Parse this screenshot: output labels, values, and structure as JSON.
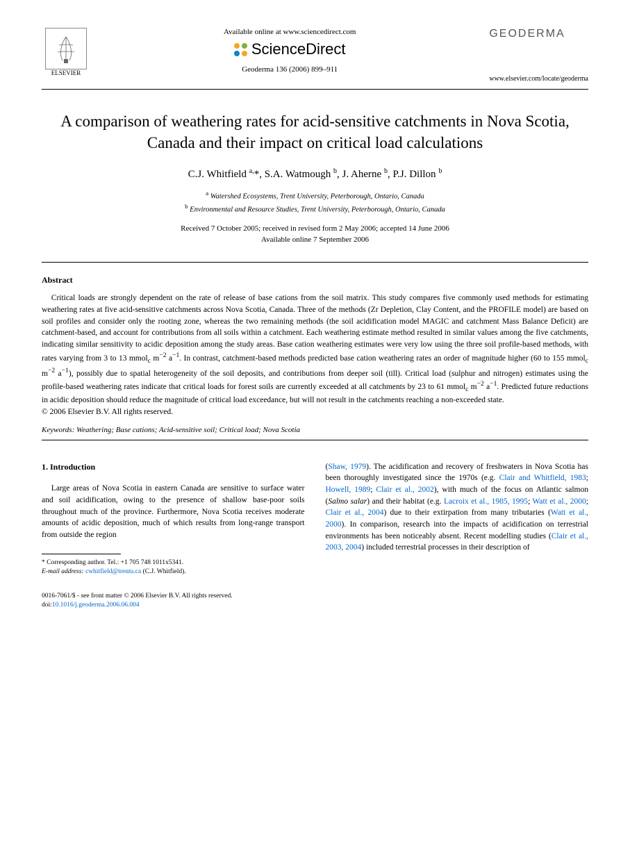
{
  "header": {
    "available_text": "Available online at www.sciencedirect.com",
    "sciencedirect": "ScienceDirect",
    "elsevier_label": "ELSEVIER",
    "journal_logo": "GEODERMA",
    "journal_cite": "Geoderma 136 (2006) 899–911",
    "journal_link": "www.elsevier.com/locate/geoderma",
    "sd_dot_colors": [
      "#f5a623",
      "#7cb342",
      "#0288d1",
      "#f5a623"
    ]
  },
  "article": {
    "title": "A comparison of weathering rates for acid-sensitive catchments in Nova Scotia, Canada and their impact on critical load calculations",
    "authors_html": "C.J. Whitfield <sup>a,</sup>*, S.A. Watmough <sup>b</sup>, J. Aherne <sup>b</sup>, P.J. Dillon <sup>b</sup>",
    "affiliations": [
      {
        "sup": "a",
        "text": "Watershed Ecosystems, Trent University, Peterborough, Ontario, Canada"
      },
      {
        "sup": "b",
        "text": "Environmental and Resource Studies, Trent University, Peterborough, Ontario, Canada"
      }
    ],
    "received": "Received 7 October 2005; received in revised form 2 May 2006; accepted 14 June 2006",
    "available_online": "Available online 7 September 2006"
  },
  "abstract": {
    "heading": "Abstract",
    "text_html": "Critical loads are strongly dependent on the rate of release of base cations from the soil matrix. This study compares five commonly used methods for estimating weathering rates at five acid-sensitive catchments across Nova Scotia, Canada. Three of the methods (Zr Depletion, Clay Content, and the PROFILE model) are based on soil profiles and consider only the rooting zone, whereas the two remaining methods (the soil acidification model MAGIC and catchment Mass Balance Deficit) are catchment-based, and account for contributions from all soils within a catchment. Each weathering estimate method resulted in similar values among the five catchments, indicating similar sensitivity to acidic deposition among the study areas. Base cation weathering estimates were very low using the three soil profile-based methods, with rates varying from 3 to 13 mmol<sub>c</sub> m<sup>−2</sup> a<sup>−1</sup>. In contrast, catchment-based methods predicted base cation weathering rates an order of magnitude higher (60 to 155 mmol<sub>c</sub> m<sup>−2</sup> a<sup>−1</sup>), possibly due to spatial heterogeneity of the soil deposits, and contributions from deeper soil (till). Critical load (sulphur and nitrogen) estimates using the profile-based weathering rates indicate that critical loads for forest soils are currently exceeded at all catchments by 23 to 61 mmol<sub>c</sub> m<sup>−2</sup> a<sup>−1</sup>. Predicted future reductions in acidic deposition should reduce the magnitude of critical load exceedance, but will not result in the catchments reaching a non-exceeded state.",
    "copyright": "© 2006 Elsevier B.V. All rights reserved."
  },
  "keywords": {
    "label": "Keywords:",
    "text": "Weathering; Base cations; Acid-sensitive soil; Critical load; Nova Scotia"
  },
  "intro": {
    "heading": "1. Introduction",
    "col1_html": "Large areas of Nova Scotia in eastern Canada are sensitive to surface water and soil acidification, owing to the presence of shallow base-poor soils throughout much of the province. Furthermore, Nova Scotia receives moderate amounts of acidic deposition, much of which results from long-range transport from outside the region",
    "col2_html": "(<span class=\"cite-link\">Shaw, 1979</span>). The acidification and recovery of freshwaters in Nova Scotia has been thoroughly investigated since the 1970s (e.g. <span class=\"cite-link\">Clair and Whitfield, 1983</span>; <span class=\"cite-link\">Howell, 1989</span>; <span class=\"cite-link\">Clair et al., 2002</span>), with much of the focus on Atlantic salmon (<i>Salmo salar</i>) and their habitat (e.g. <span class=\"cite-link\">Lacroix et al., 1985, 1995</span>; <span class=\"cite-link\">Watt et al., 2000</span>; <span class=\"cite-link\">Clair et al., 2004</span>) due to their extirpation from many tributaries (<span class=\"cite-link\">Watt et al., 2000</span>). In comparison, research into the impacts of acidification on terrestrial environments has been noticeably absent. Recent modelling studies (<span class=\"cite-link\">Clair et al., 2003, 2004</span>) included terrestrial processes in their description of"
  },
  "footnote": {
    "corresponding": "* Corresponding author. Tel.: +1 705 748 1011x5341.",
    "email_label": "E-mail address:",
    "email": "cwhitfield@trentu.ca",
    "email_suffix": "(C.J. Whitfield)."
  },
  "footer": {
    "front_matter": "0016-7061/$ - see front matter © 2006 Elsevier B.V. All rights reserved.",
    "doi_label": "doi:",
    "doi": "10.1016/j.geoderma.2006.06.004"
  }
}
